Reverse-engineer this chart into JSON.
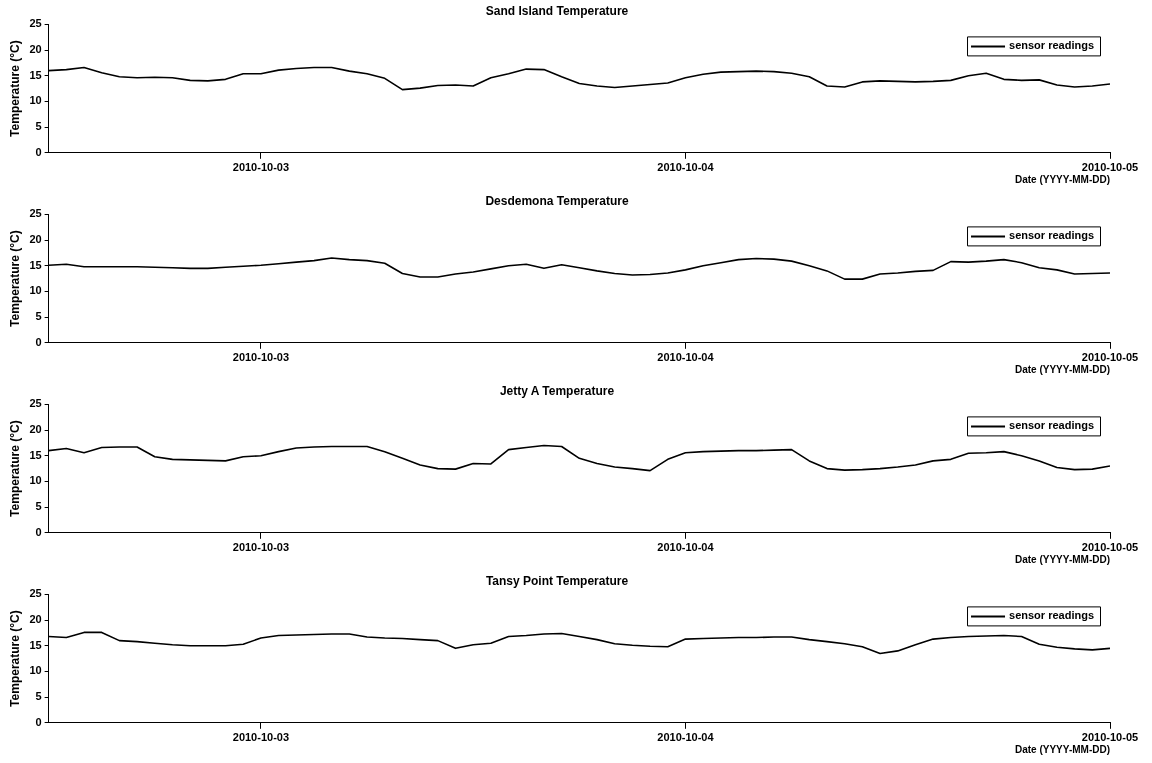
{
  "chart_data": [
    {
      "type": "line",
      "title": "Sand Island Temperature",
      "xlabel": "Date (YYYY-MM-DD)",
      "ylabel": "Temperature (°C)",
      "legend": "top right",
      "grid": false,
      "marker": "none",
      "line_style": "solid",
      "xlim": [
        "2010-10-02T12:00",
        "2010-10-05"
      ],
      "xticks": [
        "2010-10-03",
        "2010-10-04",
        "2010-10-05"
      ],
      "ylim": [
        0,
        25
      ],
      "yticks": [
        0,
        5,
        10,
        15,
        20,
        25
      ],
      "x": [
        "2010-10-02T12:00",
        "2010-10-02T13:00",
        "2010-10-02T14:00",
        "2010-10-02T15:00",
        "2010-10-02T16:00",
        "2010-10-02T17:00",
        "2010-10-02T18:00",
        "2010-10-02T19:00",
        "2010-10-02T20:00",
        "2010-10-02T21:00",
        "2010-10-02T22:00",
        "2010-10-02T23:00",
        "2010-10-03T00:00",
        "2010-10-03T01:00",
        "2010-10-03T02:00",
        "2010-10-03T03:00",
        "2010-10-03T04:00",
        "2010-10-03T05:00",
        "2010-10-03T06:00",
        "2010-10-03T07:00",
        "2010-10-03T08:00",
        "2010-10-03T09:00",
        "2010-10-03T10:00",
        "2010-10-03T11:00",
        "2010-10-03T12:00",
        "2010-10-03T13:00",
        "2010-10-03T14:00",
        "2010-10-03T15:00",
        "2010-10-03T16:00",
        "2010-10-03T17:00",
        "2010-10-03T18:00",
        "2010-10-03T19:00",
        "2010-10-03T20:00",
        "2010-10-03T21:00",
        "2010-10-03T22:00",
        "2010-10-03T23:00",
        "2010-10-04T00:00",
        "2010-10-04T01:00",
        "2010-10-04T02:00",
        "2010-10-04T03:00",
        "2010-10-04T04:00",
        "2010-10-04T05:00",
        "2010-10-04T06:00",
        "2010-10-04T07:00",
        "2010-10-04T08:00",
        "2010-10-04T09:00",
        "2010-10-04T10:00",
        "2010-10-04T11:00",
        "2010-10-04T12:00",
        "2010-10-04T13:00",
        "2010-10-04T14:00",
        "2010-10-04T15:00",
        "2010-10-04T16:00",
        "2010-10-04T17:00",
        "2010-10-04T18:00",
        "2010-10-04T19:00",
        "2010-10-04T20:00",
        "2010-10-04T21:00",
        "2010-10-04T22:00",
        "2010-10-04T23:00",
        "2010-10-05T00:00"
      ],
      "series": [
        {
          "name": "sensor readings",
          "color": "#000000",
          "values": [
            16.0,
            16.2,
            16.6,
            15.6,
            14.8,
            14.6,
            14.7,
            14.6,
            14.1,
            14.0,
            14.3,
            15.4,
            15.4,
            16.1,
            16.4,
            16.6,
            16.6,
            15.9,
            15.4,
            14.5,
            12.3,
            12.6,
            13.1,
            13.2,
            13.0,
            14.6,
            15.4,
            16.3,
            16.2,
            14.8,
            13.5,
            13.0,
            12.7,
            13.0,
            13.3,
            13.6,
            14.6,
            15.3,
            15.7,
            15.8,
            15.9,
            15.8,
            15.5,
            14.8,
            13.0,
            12.8,
            13.8,
            14.0,
            13.9,
            13.8,
            13.9,
            14.1,
            15.0,
            15.5,
            14.3,
            14.1,
            14.2,
            13.2,
            12.8,
            13.0,
            13.4
          ]
        }
      ]
    },
    {
      "type": "line",
      "title": "Desdemona Temperature",
      "xlabel": "Date (YYYY-MM-DD)",
      "ylabel": "Temperature (°C)",
      "legend": "top right",
      "grid": false,
      "marker": "none",
      "line_style": "solid",
      "xlim": [
        "2010-10-02T12:00",
        "2010-10-05"
      ],
      "xticks": [
        "2010-10-03",
        "2010-10-04",
        "2010-10-05"
      ],
      "ylim": [
        0,
        25
      ],
      "yticks": [
        0,
        5,
        10,
        15,
        20,
        25
      ],
      "x": [
        "2010-10-02T12:00",
        "2010-10-02T13:00",
        "2010-10-02T14:00",
        "2010-10-02T15:00",
        "2010-10-02T16:00",
        "2010-10-02T17:00",
        "2010-10-02T18:00",
        "2010-10-02T19:00",
        "2010-10-02T20:00",
        "2010-10-02T21:00",
        "2010-10-02T22:00",
        "2010-10-02T23:00",
        "2010-10-03T00:00",
        "2010-10-03T01:00",
        "2010-10-03T02:00",
        "2010-10-03T03:00",
        "2010-10-03T04:00",
        "2010-10-03T05:00",
        "2010-10-03T06:00",
        "2010-10-03T07:00",
        "2010-10-03T08:00",
        "2010-10-03T09:00",
        "2010-10-03T10:00",
        "2010-10-03T11:00",
        "2010-10-03T12:00",
        "2010-10-03T13:00",
        "2010-10-03T14:00",
        "2010-10-03T15:00",
        "2010-10-03T16:00",
        "2010-10-03T17:00",
        "2010-10-03T18:00",
        "2010-10-03T19:00",
        "2010-10-03T20:00",
        "2010-10-03T21:00",
        "2010-10-03T22:00",
        "2010-10-03T23:00",
        "2010-10-04T00:00",
        "2010-10-04T01:00",
        "2010-10-04T02:00",
        "2010-10-04T03:00",
        "2010-10-04T04:00",
        "2010-10-04T05:00",
        "2010-10-04T06:00",
        "2010-10-04T07:00",
        "2010-10-04T08:00",
        "2010-10-04T09:00",
        "2010-10-04T10:00",
        "2010-10-04T11:00",
        "2010-10-04T12:00",
        "2010-10-04T13:00",
        "2010-10-04T14:00",
        "2010-10-04T15:00",
        "2010-10-04T16:00",
        "2010-10-04T17:00",
        "2010-10-04T18:00",
        "2010-10-04T19:00",
        "2010-10-04T20:00",
        "2010-10-04T21:00",
        "2010-10-04T22:00",
        "2010-10-04T23:00",
        "2010-10-05T00:00"
      ],
      "series": [
        {
          "name": "sensor readings",
          "color": "#000000",
          "values": [
            15.1,
            15.3,
            14.8,
            14.8,
            14.8,
            14.8,
            14.7,
            14.6,
            14.5,
            14.5,
            14.7,
            14.9,
            15.1,
            15.4,
            15.7,
            16.0,
            16.5,
            16.2,
            16.0,
            15.5,
            13.5,
            12.8,
            12.8,
            13.4,
            13.8,
            14.4,
            15.0,
            15.3,
            14.5,
            15.2,
            14.6,
            14.0,
            13.5,
            13.2,
            13.3,
            13.6,
            14.2,
            15.0,
            15.6,
            16.2,
            16.4,
            16.3,
            15.9,
            15.0,
            14.0,
            12.4,
            12.4,
            13.4,
            13.6,
            13.9,
            14.1,
            15.8,
            15.7,
            15.9,
            16.2,
            15.6,
            14.6,
            14.2,
            13.4,
            13.5,
            13.6
          ]
        }
      ]
    },
    {
      "type": "line",
      "title": "Jetty A Temperature",
      "xlabel": "Date (YYYY-MM-DD)",
      "ylabel": "Temperature (°C)",
      "legend": "top right",
      "grid": false,
      "marker": "none",
      "line_style": "solid",
      "xlim": [
        "2010-10-02T12:00",
        "2010-10-05"
      ],
      "xticks": [
        "2010-10-03",
        "2010-10-04",
        "2010-10-05"
      ],
      "ylim": [
        0,
        25
      ],
      "yticks": [
        0,
        5,
        10,
        15,
        20,
        25
      ],
      "x": [
        "2010-10-02T12:00",
        "2010-10-02T13:00",
        "2010-10-02T14:00",
        "2010-10-02T15:00",
        "2010-10-02T16:00",
        "2010-10-02T17:00",
        "2010-10-02T18:00",
        "2010-10-02T19:00",
        "2010-10-02T20:00",
        "2010-10-02T21:00",
        "2010-10-02T22:00",
        "2010-10-02T23:00",
        "2010-10-03T00:00",
        "2010-10-03T01:00",
        "2010-10-03T02:00",
        "2010-10-03T03:00",
        "2010-10-03T04:00",
        "2010-10-03T05:00",
        "2010-10-03T06:00",
        "2010-10-03T07:00",
        "2010-10-03T08:00",
        "2010-10-03T09:00",
        "2010-10-03T10:00",
        "2010-10-03T11:00",
        "2010-10-03T12:00",
        "2010-10-03T13:00",
        "2010-10-03T14:00",
        "2010-10-03T15:00",
        "2010-10-03T16:00",
        "2010-10-03T17:00",
        "2010-10-03T18:00",
        "2010-10-03T19:00",
        "2010-10-03T20:00",
        "2010-10-03T21:00",
        "2010-10-03T22:00",
        "2010-10-03T23:00",
        "2010-10-04T00:00",
        "2010-10-04T01:00",
        "2010-10-04T02:00",
        "2010-10-04T03:00",
        "2010-10-04T04:00",
        "2010-10-04T05:00",
        "2010-10-04T06:00",
        "2010-10-04T07:00",
        "2010-10-04T08:00",
        "2010-10-04T09:00",
        "2010-10-04T10:00",
        "2010-10-04T11:00",
        "2010-10-04T12:00",
        "2010-10-04T13:00",
        "2010-10-04T14:00",
        "2010-10-04T15:00",
        "2010-10-04T16:00",
        "2010-10-04T17:00",
        "2010-10-04T18:00",
        "2010-10-04T19:00",
        "2010-10-04T20:00",
        "2010-10-04T21:00",
        "2010-10-04T22:00",
        "2010-10-04T23:00",
        "2010-10-05T00:00"
      ],
      "series": [
        {
          "name": "sensor readings",
          "color": "#000000",
          "values": [
            16.0,
            16.4,
            15.6,
            16.6,
            16.7,
            16.7,
            14.8,
            14.3,
            14.2,
            14.1,
            14.0,
            14.8,
            15.0,
            15.8,
            16.5,
            16.7,
            16.8,
            16.8,
            16.8,
            15.8,
            14.5,
            13.2,
            12.5,
            12.4,
            13.5,
            13.4,
            16.2,
            16.6,
            17.0,
            16.8,
            14.5,
            13.5,
            12.8,
            12.5,
            12.1,
            14.3,
            15.6,
            15.8,
            15.9,
            16.0,
            16.0,
            16.1,
            16.2,
            14.0,
            12.5,
            12.2,
            12.3,
            12.5,
            12.8,
            13.2,
            14.0,
            14.3,
            15.5,
            15.6,
            15.8,
            15.0,
            14.0,
            12.7,
            12.3,
            12.4,
            13.0
          ]
        }
      ]
    },
    {
      "type": "line",
      "title": "Tansy Point Temperature",
      "xlabel": "Date (YYYY-MM-DD)",
      "ylabel": "Temperature (°C)",
      "legend": "top right",
      "grid": false,
      "marker": "none",
      "line_style": "solid",
      "xlim": [
        "2010-10-02T12:00",
        "2010-10-05"
      ],
      "xticks": [
        "2010-10-03",
        "2010-10-04",
        "2010-10-05"
      ],
      "ylim": [
        0,
        25
      ],
      "yticks": [
        0,
        5,
        10,
        15,
        20,
        25
      ],
      "x": [
        "2010-10-02T12:00",
        "2010-10-02T13:00",
        "2010-10-02T14:00",
        "2010-10-02T15:00",
        "2010-10-02T16:00",
        "2010-10-02T17:00",
        "2010-10-02T18:00",
        "2010-10-02T19:00",
        "2010-10-02T20:00",
        "2010-10-02T21:00",
        "2010-10-02T22:00",
        "2010-10-02T23:00",
        "2010-10-03T00:00",
        "2010-10-03T01:00",
        "2010-10-03T02:00",
        "2010-10-03T03:00",
        "2010-10-03T04:00",
        "2010-10-03T05:00",
        "2010-10-03T06:00",
        "2010-10-03T07:00",
        "2010-10-03T08:00",
        "2010-10-03T09:00",
        "2010-10-03T10:00",
        "2010-10-03T11:00",
        "2010-10-03T12:00",
        "2010-10-03T13:00",
        "2010-10-03T14:00",
        "2010-10-03T15:00",
        "2010-10-03T16:00",
        "2010-10-03T17:00",
        "2010-10-03T18:00",
        "2010-10-03T19:00",
        "2010-10-03T20:00",
        "2010-10-03T21:00",
        "2010-10-03T22:00",
        "2010-10-03T23:00",
        "2010-10-04T00:00",
        "2010-10-04T01:00",
        "2010-10-04T02:00",
        "2010-10-04T03:00",
        "2010-10-04T04:00",
        "2010-10-04T05:00",
        "2010-10-04T06:00",
        "2010-10-04T07:00",
        "2010-10-04T08:00",
        "2010-10-04T09:00",
        "2010-10-04T10:00",
        "2010-10-04T11:00",
        "2010-10-04T12:00",
        "2010-10-04T13:00",
        "2010-10-04T14:00",
        "2010-10-04T15:00",
        "2010-10-04T16:00",
        "2010-10-04T17:00",
        "2010-10-04T18:00",
        "2010-10-04T19:00",
        "2010-10-04T20:00",
        "2010-10-04T21:00",
        "2010-10-04T22:00",
        "2010-10-04T23:00",
        "2010-10-05T00:00"
      ],
      "series": [
        {
          "name": "sensor readings",
          "color": "#000000",
          "values": [
            16.8,
            16.6,
            17.6,
            17.6,
            16.0,
            15.8,
            15.5,
            15.2,
            15.0,
            15.0,
            15.0,
            15.3,
            16.5,
            17.0,
            17.1,
            17.2,
            17.3,
            17.3,
            16.7,
            16.5,
            16.4,
            16.2,
            16.0,
            14.5,
            15.2,
            15.5,
            16.8,
            17.0,
            17.3,
            17.4,
            16.8,
            16.2,
            15.4,
            15.1,
            14.9,
            14.8,
            16.3,
            16.4,
            16.5,
            16.6,
            16.6,
            16.7,
            16.7,
            16.2,
            15.8,
            15.4,
            14.8,
            13.5,
            14.0,
            15.2,
            16.3,
            16.6,
            16.8,
            16.9,
            17.0,
            16.8,
            15.3,
            14.7,
            14.4,
            14.2,
            14.5
          ]
        }
      ]
    }
  ]
}
